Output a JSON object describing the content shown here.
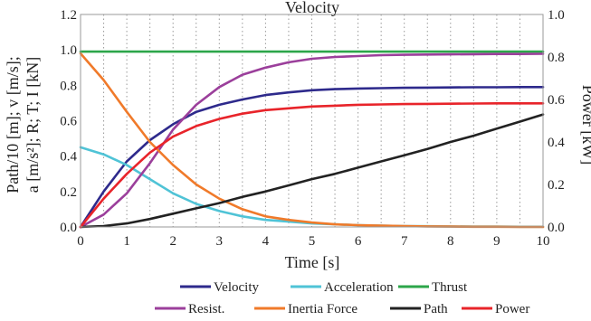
{
  "chart_data": {
    "type": "line",
    "title": "Velocity",
    "xlabel": "Time [s]",
    "ylabel_left": [
      "Path/10 [m];  v [m/s];",
      "a [m/s²];  R;  T;  I [kN]"
    ],
    "ylabel_right": "Power [kW]",
    "xlim": [
      0,
      10
    ],
    "ylim_left": [
      0,
      1.2
    ],
    "ylim_right": [
      0,
      1.0
    ],
    "x_ticks": [
      "0",
      "1",
      "2",
      "3",
      "4",
      "5",
      "6",
      "7",
      "8",
      "9",
      "10"
    ],
    "y_left_ticks": [
      "0.0",
      "0.2",
      "0.4",
      "0.6",
      "0.8",
      "1.0",
      "1.2"
    ],
    "y_right_ticks": [
      "0.0",
      "0.2",
      "0.4",
      "0.6",
      "0.8",
      "1.0"
    ],
    "grid": "vertical dotted",
    "legend_position": "bottom",
    "x": [
      0,
      0.5,
      1,
      1.5,
      2,
      2.5,
      3,
      3.5,
      4,
      4.5,
      5,
      5.5,
      6,
      6.5,
      7,
      7.5,
      8,
      8.5,
      9,
      9.5,
      10
    ],
    "series": [
      {
        "name": "Velocity",
        "color": "#2e2a8c",
        "values": [
          0,
          0.2,
          0.37,
          0.49,
          0.58,
          0.65,
          0.69,
          0.72,
          0.745,
          0.76,
          0.772,
          0.778,
          0.782,
          0.784,
          0.786,
          0.787,
          0.788,
          0.789,
          0.789,
          0.79,
          0.79
        ]
      },
      {
        "name": "Acceleration",
        "color": "#4fc3d6",
        "values": [
          0.45,
          0.41,
          0.35,
          0.27,
          0.19,
          0.13,
          0.09,
          0.06,
          0.04,
          0.03,
          0.02,
          0.015,
          0.01,
          0.007,
          0.005,
          0.004,
          0.003,
          0.002,
          0.002,
          0.001,
          0.001
        ]
      },
      {
        "name": "Thrust",
        "color": "#2ca64a",
        "values": [
          0.99,
          0.99,
          0.99,
          0.99,
          0.99,
          0.99,
          0.99,
          0.99,
          0.99,
          0.99,
          0.99,
          0.99,
          0.99,
          0.99,
          0.99,
          0.99,
          0.99,
          0.99,
          0.99,
          0.99,
          0.99
        ]
      },
      {
        "name": "Resist.",
        "color": "#9b3f9b",
        "values": [
          0,
          0.07,
          0.19,
          0.36,
          0.55,
          0.69,
          0.79,
          0.86,
          0.9,
          0.93,
          0.95,
          0.96,
          0.965,
          0.97,
          0.972,
          0.974,
          0.975,
          0.976,
          0.977,
          0.977,
          0.978
        ]
      },
      {
        "name": "Inertia Force",
        "color": "#f07a2a",
        "values": [
          0.98,
          0.83,
          0.65,
          0.48,
          0.35,
          0.24,
          0.16,
          0.1,
          0.06,
          0.04,
          0.025,
          0.015,
          0.01,
          0.007,
          0.005,
          0.003,
          0.002,
          0.001,
          0.001,
          0,
          0
        ]
      },
      {
        "name": "Path",
        "color": "#222222",
        "values": [
          0,
          0.005,
          0.02,
          0.045,
          0.075,
          0.105,
          0.135,
          0.17,
          0.2,
          0.235,
          0.27,
          0.3,
          0.335,
          0.37,
          0.405,
          0.44,
          0.48,
          0.515,
          0.555,
          0.595,
          0.635
        ]
      },
      {
        "name": "Power",
        "color": "#e8242a",
        "values": [
          0,
          0.16,
          0.3,
          0.42,
          0.51,
          0.57,
          0.61,
          0.64,
          0.66,
          0.67,
          0.68,
          0.685,
          0.69,
          0.692,
          0.694,
          0.695,
          0.696,
          0.697,
          0.698,
          0.698,
          0.698
        ]
      }
    ],
    "legend_rows": [
      [
        "Velocity",
        "Acceleration",
        "Thrust"
      ],
      [
        "Resist.",
        "Inertia Force",
        "Path",
        "Power"
      ]
    ]
  }
}
